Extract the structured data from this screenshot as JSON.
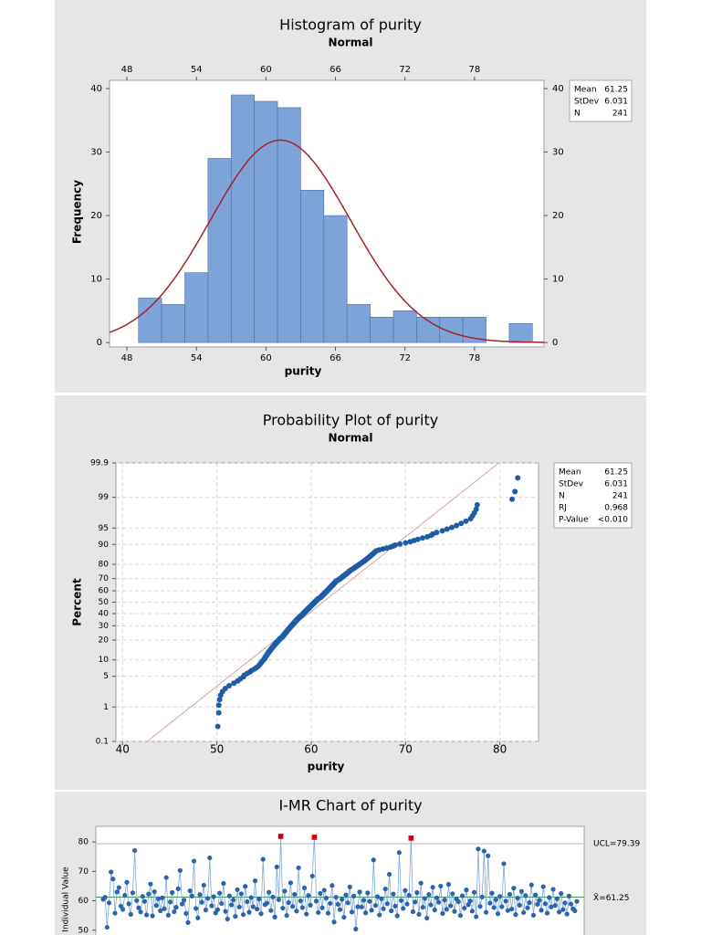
{
  "chart_data": [
    {
      "type": "histogram",
      "title": "Histogram of purity",
      "subtitle": "Normal",
      "xlabel": "purity",
      "ylabel": "Frequency",
      "bins": [
        49,
        51,
        53,
        55,
        57,
        59,
        61,
        63,
        65,
        67,
        69,
        71,
        73,
        75,
        77,
        79,
        81,
        83
      ],
      "counts": [
        7,
        6,
        11,
        29,
        39,
        38,
        37,
        24,
        20,
        6,
        4,
        5,
        4,
        4,
        4,
        0,
        3
      ],
      "color": "#7da3d9",
      "edgecolor": "#4f6f9e",
      "fit_color": "#a0242a",
      "xlim": [
        46.5,
        84
      ],
      "ylim": [
        -0.7,
        41.3
      ],
      "xticks": [
        48,
        54,
        60,
        66,
        72,
        78
      ],
      "yticks": [
        0,
        10,
        20,
        30,
        40
      ],
      "stats": [
        {
          "label": "Mean",
          "value": 61.25
        },
        {
          "label": "StDev",
          "value": 6.031
        },
        {
          "label": "N",
          "value": 241
        }
      ]
    },
    {
      "type": "probability",
      "title": "Probability Plot of purity",
      "subtitle": "Normal",
      "xlabel": "purity",
      "ylabel": "Percent",
      "x": [
        50.1,
        50.2,
        50.2,
        50.3,
        50.4,
        50.6,
        50.9,
        51.3,
        51.8,
        52.2,
        52.5,
        52.8,
        52.9,
        53.2,
        53.5,
        53.7,
        54.0,
        54.2,
        54.4,
        54.5,
        54.6,
        54.7,
        54.8,
        54.9,
        55.0,
        55.1,
        55.1,
        55.2,
        55.3,
        55.3,
        55.4,
        55.5,
        55.5,
        55.6,
        55.7,
        55.7,
        55.8,
        55.9,
        55.9,
        56.0,
        56.1,
        56.1,
        56.2,
        56.3,
        56.3,
        56.4,
        56.5,
        56.5,
        56.6,
        56.7,
        56.7,
        56.8,
        56.9,
        57.0,
        57.0,
        57.1,
        57.1,
        57.2,
        57.2,
        57.3,
        57.3,
        57.4,
        57.4,
        57.5,
        57.5,
        57.6,
        57.6,
        57.7,
        57.7,
        57.8,
        57.8,
        57.9,
        57.9,
        58.0,
        58.0,
        58.1,
        58.1,
        58.2,
        58.2,
        58.3,
        58.3,
        58.4,
        58.4,
        58.5,
        58.5,
        58.6,
        58.6,
        58.7,
        58.7,
        58.8,
        58.8,
        58.9,
        59.0,
        59.0,
        59.1,
        59.1,
        59.2,
        59.2,
        59.3,
        59.3,
        59.4,
        59.4,
        59.5,
        59.5,
        59.6,
        59.6,
        59.7,
        59.7,
        59.8,
        59.8,
        59.9,
        59.9,
        60.0,
        60.0,
        60.1,
        60.1,
        60.2,
        60.2,
        60.3,
        60.3,
        60.4,
        60.4,
        60.5,
        60.5,
        60.6,
        60.6,
        60.7,
        60.7,
        60.8,
        60.9,
        61.0,
        61.0,
        61.1,
        61.1,
        61.2,
        61.2,
        61.3,
        61.3,
        61.4,
        61.4,
        61.5,
        61.5,
        61.6,
        61.6,
        61.7,
        61.7,
        61.8,
        61.8,
        61.9,
        61.9,
        62.0,
        62.0,
        62.1,
        62.1,
        62.2,
        62.2,
        62.3,
        62.3,
        62.4,
        62.4,
        62.5,
        62.5,
        62.6,
        62.6,
        62.7,
        62.8,
        62.9,
        63.0,
        63.1,
        63.1,
        63.2,
        63.3,
        63.4,
        63.4,
        63.5,
        63.6,
        63.7,
        63.7,
        63.8,
        63.9,
        64.0,
        64.0,
        64.1,
        64.2,
        64.3,
        64.4,
        64.5,
        64.6,
        64.7,
        64.8,
        64.9,
        65.0,
        65.1,
        65.2,
        65.3,
        65.4,
        65.5,
        65.6,
        65.7,
        65.8,
        65.9,
        66.0,
        66.1,
        66.2,
        66.3,
        66.4,
        66.5,
        66.6,
        66.7,
        66.8,
        66.9,
        67.2,
        67.6,
        68.0,
        68.4,
        68.7,
        68.9,
        69.4,
        70.0,
        70.5,
        70.9,
        71.3,
        71.8,
        72.3,
        72.7,
        72.9,
        73.3,
        73.9,
        74.4,
        74.9,
        75.4,
        75.9,
        76.4,
        76.9,
        77.1,
        77.3,
        77.5,
        77.6,
        81.3,
        81.6,
        81.9
      ],
      "color": "#1f5ca6",
      "fit_color": "#d7a2ab",
      "grid": true,
      "yscale": "probability",
      "xlim": [
        39.3,
        84.1
      ],
      "ylim": [
        0.1,
        99.9
      ],
      "xticks": [
        40,
        50,
        60,
        70,
        80
      ],
      "yticks": [
        0.1,
        1,
        5,
        10,
        20,
        30,
        40,
        50,
        60,
        70,
        80,
        90,
        95,
        99,
        99.9
      ],
      "stats": [
        {
          "label": "Mean",
          "value": 61.25
        },
        {
          "label": "StDev",
          "value": 6.031
        },
        {
          "label": "N",
          "value": 241
        },
        {
          "label": "RJ",
          "value": 0.968
        },
        {
          "label": "P-Value",
          "value": "<0.010"
        }
      ]
    },
    {
      "type": "control",
      "title": "I-MR Chart of purity",
      "ylabel": "Individual Value",
      "values": [
        60.5,
        61.2,
        51.0,
        59.3,
        69.8,
        67.4,
        55.8,
        63.0,
        64.5,
        58.2,
        57.1,
        61.9,
        66.3,
        59.0,
        55.4,
        62.7,
        77.1,
        60.1,
        57.6,
        56.2,
        61.5,
        59.8,
        55.2,
        62.3,
        65.7,
        54.9,
        63.1,
        58.4,
        60.7,
        56.6,
        61.0,
        57.3,
        67.9,
        55.1,
        59.6,
        62.8,
        56.3,
        57.8,
        64.1,
        70.3,
        58.9,
        60.2,
        55.7,
        52.6,
        63.4,
        61.6,
        73.5,
        57.4,
        54.2,
        62.1,
        59.5,
        65.3,
        56.9,
        60.8,
        74.6,
        58.3,
        61.4,
        55.9,
        57.0,
        62.6,
        59.1,
        65.9,
        56.4,
        53.8,
        61.7,
        58.6,
        60.3,
        54.7,
        63.8,
        57.9,
        62.4,
        55.3,
        64.9,
        59.7,
        56.1,
        61.1,
        58.0,
        66.8,
        57.2,
        60.6,
        55.6,
        74.1,
        58.7,
        59.2,
        62.9,
        56.7,
        61.3,
        54.5,
        71.5,
        60.4,
        81.9,
        57.5,
        63.3,
        55.0,
        59.4,
        66.1,
        58.1,
        62.2,
        56.5,
        71.2,
        60.0,
        57.7,
        64.4,
        55.5,
        61.8,
        58.5,
        68.4,
        81.6,
        59.9,
        56.0,
        62.5,
        57.6,
        63.6,
        60.9,
        55.8,
        59.1,
        65.2,
        52.8,
        61.2,
        58.8,
        57.0,
        60.5,
        54.4,
        62.0,
        59.3,
        64.7,
        56.2,
        61.6,
        50.4,
        58.0,
        63.0,
        57.9,
        60.2,
        55.9,
        62.7,
        59.8,
        56.8,
        73.9,
        58.4,
        61.4,
        55.2,
        60.7,
        57.3,
        64.0,
        59.0,
        69.0,
        56.6,
        62.3,
        58.2,
        54.9,
        76.4,
        60.1,
        57.4,
        63.5,
        58.9,
        61.9,
        81.3,
        56.3,
        59.6,
        62.8,
        55.4,
        66.0,
        57.8,
        60.8,
        54.1,
        62.1,
        58.6,
        64.6,
        56.9,
        61.0,
        59.5,
        65.0,
        55.7,
        60.3,
        57.1,
        65.6,
        58.3,
        62.4,
        56.4,
        60.6,
        59.7,
        55.0,
        61.7,
        57.5,
        63.7,
        58.7,
        60.0,
        56.5,
        62.9,
        54.6,
        77.6,
        58.1,
        61.3,
        76.9,
        56.1,
        75.3,
        59.2,
        62.6,
        57.7,
        60.4,
        55.6,
        61.5,
        58.0,
        72.6,
        59.9,
        56.7,
        62.2,
        57.2,
        64.3,
        55.3,
        60.9,
        58.5,
        63.2,
        56.0,
        61.8,
        57.6,
        59.4,
        65.4,
        55.1,
        62.0,
        58.8,
        60.2,
        56.8,
        64.8,
        59.0,
        55.8,
        61.1,
        57.9,
        63.9,
        58.4,
        60.7,
        56.2,
        62.5,
        57.0,
        59.3,
        55.5,
        61.6,
        58.9,
        57.3,
        56.6,
        59.8
      ],
      "color": "#2b64ad",
      "line_color": "#7fa7d6",
      "out_color": "#d40000",
      "ucl_color": "#bdbdbd",
      "center_color": "#3c9a4a",
      "ylim": [
        40,
        85.3
      ],
      "yticks": [
        50,
        60,
        70,
        80
      ],
      "ucl": {
        "value": 79.39,
        "label": "UCL=79.39"
      },
      "center": {
        "value": 61.25,
        "label": "X̄=61.25"
      }
    }
  ]
}
